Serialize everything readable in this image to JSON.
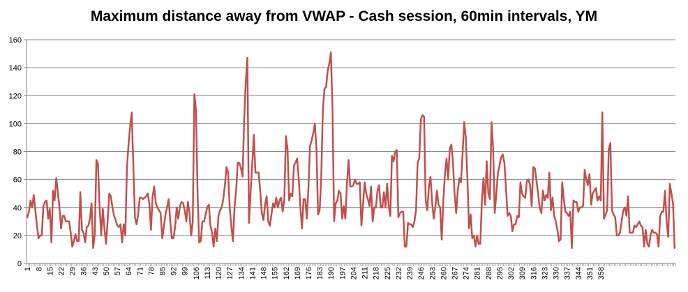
{
  "chart_data": {
    "type": "line",
    "title": "Maximum distance away from VWAP - Cash session, 60min intervals, YM",
    "xlabel": "",
    "ylabel": "",
    "ylim": [
      0,
      160
    ],
    "yticks": [
      "0",
      "20",
      "40",
      "60",
      "80",
      "100",
      "120",
      "140",
      "160"
    ],
    "x_tick_labels": [
      "1",
      "8",
      "15",
      "22",
      "29",
      "36",
      "43",
      "50",
      "57",
      "64",
      "71",
      "78",
      "85",
      "92",
      "99",
      "106",
      "113",
      "120",
      "127",
      "134",
      "141",
      "148",
      "155",
      "162",
      "169",
      "176",
      "183",
      "190",
      "197",
      "204",
      "211",
      "218",
      "225",
      "232",
      "239",
      "246",
      "253",
      "260",
      "267",
      "274",
      "281",
      "288",
      "295",
      "302",
      "309",
      "316",
      "323",
      "330",
      "337",
      "344",
      "351",
      "358"
    ],
    "grid": true,
    "legend": "none",
    "colors": {
      "line": "#C0504D",
      "grid": "#868686",
      "axis": "#868686"
    },
    "series": [
      {
        "values": [
          33,
          37,
          45,
          40,
          49,
          38,
          27,
          18,
          20,
          20,
          41,
          44,
          45,
          32,
          39,
          15,
          52,
          45,
          61,
          51,
          40,
          25,
          34,
          34,
          30,
          30,
          30,
          22,
          12,
          16,
          21,
          16,
          16,
          51,
          24,
          22,
          15,
          26,
          27,
          32,
          43,
          11,
          21,
          74,
          71,
          40,
          20,
          39,
          25,
          14,
          30,
          50,
          48,
          40,
          34,
          31,
          27,
          26,
          28,
          15,
          28,
          20,
          68,
          85,
          98,
          108,
          70,
          33,
          28,
          35,
          47,
          47,
          46,
          47,
          48,
          50,
          42,
          24,
          48,
          55,
          43,
          40,
          38,
          36,
          18,
          26,
          35,
          40,
          46,
          30,
          18,
          18,
          26,
          40,
          32,
          41,
          44,
          43,
          38,
          30,
          44,
          36,
          20,
          30,
          121,
          110,
          50,
          15,
          16,
          30,
          30,
          35,
          40,
          42,
          27,
          22,
          12,
          25,
          16,
          34,
          38,
          40,
          46,
          56,
          69,
          65,
          40,
          27,
          16,
          40,
          52,
          72,
          72,
          68,
          62,
          103,
          130,
          147,
          29,
          51,
          70,
          92,
          65,
          65,
          65,
          52,
          36,
          31,
          42,
          48,
          30,
          27,
          35,
          43,
          40,
          47,
          40,
          45,
          47,
          37,
          46,
          91,
          82,
          45,
          50,
          48,
          70,
          72,
          75,
          60,
          40,
          25,
          46,
          46,
          32,
          54,
          84,
          88,
          93,
          100,
          82,
          35,
          38,
          62,
          110,
          125,
          126,
          138,
          143,
          151,
          110,
          30,
          43,
          45,
          52,
          50,
          32,
          41,
          32,
          57,
          74,
          55,
          55,
          56,
          60,
          57,
          57,
          58,
          27,
          42,
          58,
          50,
          46,
          41,
          55,
          30,
          40,
          40,
          52,
          56,
          40,
          40,
          51,
          40,
          57,
          41,
          34,
          77,
          73,
          80,
          81,
          33,
          36,
          37,
          37,
          12,
          12,
          29,
          28,
          28,
          26,
          30,
          38,
          72,
          75,
          103,
          106,
          105,
          45,
          38,
          55,
          62,
          44,
          32,
          40,
          52,
          42,
          40,
          17,
          45,
          64,
          75,
          60,
          82,
          85,
          72,
          50,
          36,
          52,
          61,
          58,
          79,
          101,
          90,
          60,
          25,
          35,
          18,
          20,
          12,
          20,
          14,
          14,
          45,
          61,
          42,
          73,
          50,
          46,
          101,
          82,
          36,
          50,
          65,
          70,
          76,
          78,
          72,
          54,
          34,
          36,
          34,
          23,
          28,
          28,
          34,
          33,
          58,
          50,
          48,
          47,
          59,
          60,
          56,
          41,
          69,
          68,
          59,
          50,
          40,
          36,
          52,
          45,
          49,
          47,
          65,
          38,
          47,
          34,
          30,
          24,
          16,
          17,
          58,
          46,
          37,
          36,
          34,
          37,
          11,
          45,
          44,
          44,
          37,
          40,
          40,
          41,
          67,
          60,
          56,
          64,
          42,
          50,
          52,
          54,
          45,
          48,
          45,
          108,
          32,
          35,
          38,
          82,
          86,
          38,
          35,
          33,
          20,
          20,
          22,
          30,
          38,
          40,
          34,
          48,
          22,
          22,
          22,
          27,
          26,
          28,
          30,
          27,
          26,
          12,
          24,
          14,
          12,
          20,
          24,
          22,
          22,
          21,
          12,
          34,
          37,
          37,
          52,
          30,
          19,
          57,
          50,
          43,
          11
        ]
      }
    ]
  }
}
